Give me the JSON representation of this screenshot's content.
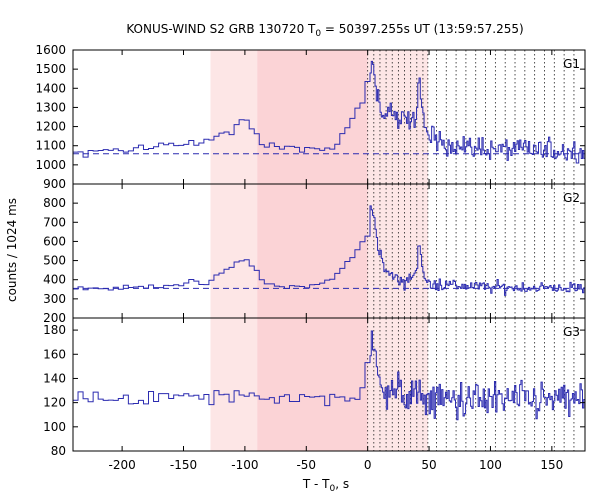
{
  "chart_data": {
    "type": "line",
    "title": "KONUS-WIND S2 GRB 130720 T",
    "title_sub": "0",
    "title_rest": " = 50397.255s UT (13:59:57.255)",
    "xlabel": "T - T",
    "xlabel_sub": "0",
    "xlabel_rest": ", s",
    "ylabel": "counts / 1024 ms",
    "xlim": [
      -240,
      177
    ],
    "x_ticks": [
      -200,
      -150,
      -100,
      -50,
      0,
      50,
      100,
      150
    ],
    "colors": {
      "line": "#2b2bb0",
      "light_band": "#fde6e6",
      "dark_band": "#fbd3d6",
      "dashed": "#000000"
    },
    "shaded_regions": [
      {
        "from": -128,
        "to": -90,
        "shade": "light"
      },
      {
        "from": -90,
        "to": 0,
        "shade": "dark"
      },
      {
        "from": 0,
        "to": 49,
        "shade": "light"
      }
    ],
    "vertical_dotted_lines": [
      0,
      5,
      10,
      15,
      20,
      25,
      30,
      35,
      40,
      45,
      49,
      56,
      64,
      72,
      80,
      88,
      96,
      104,
      112,
      120,
      128,
      136,
      144,
      152,
      160,
      168
    ],
    "panels": [
      {
        "label": "G1",
        "ylim": [
          900,
          1600
        ],
        "y_ticks": [
          900,
          1000,
          1100,
          1200,
          1300,
          1400,
          1500,
          1600
        ],
        "background": 1058,
        "keypoints": [
          [
            -240,
            1060
          ],
          [
            -200,
            1070
          ],
          [
            -150,
            1110
          ],
          [
            -130,
            1130
          ],
          [
            -110,
            1180
          ],
          [
            -100,
            1240
          ],
          [
            -95,
            1200
          ],
          [
            -85,
            1110
          ],
          [
            -60,
            1090
          ],
          [
            -50,
            1080
          ],
          [
            -35,
            1070
          ],
          [
            -25,
            1110
          ],
          [
            -15,
            1220
          ],
          [
            -5,
            1310
          ],
          [
            -1,
            1380
          ],
          [
            0,
            1420
          ],
          [
            2,
            1530
          ],
          [
            5,
            1500
          ],
          [
            8,
            1350
          ],
          [
            14,
            1250
          ],
          [
            20,
            1300
          ],
          [
            25,
            1210
          ],
          [
            30,
            1240
          ],
          [
            35,
            1210
          ],
          [
            40,
            1280
          ],
          [
            42,
            1490
          ],
          [
            44,
            1300
          ],
          [
            47,
            1170
          ],
          [
            55,
            1130
          ],
          [
            80,
            1090
          ],
          [
            120,
            1080
          ],
          [
            177,
            1070
          ]
        ],
        "noise_pre": 14,
        "noise_post": 42
      },
      {
        "label": "G2",
        "ylim": [
          200,
          900
        ],
        "y_ticks": [
          200,
          300,
          400,
          500,
          600,
          700,
          800
        ],
        "background": 355,
        "keypoints": [
          [
            -240,
            355
          ],
          [
            -200,
            355
          ],
          [
            -150,
            380
          ],
          [
            -130,
            380
          ],
          [
            -120,
            430
          ],
          [
            -110,
            470
          ],
          [
            -100,
            510
          ],
          [
            -92,
            470
          ],
          [
            -85,
            380
          ],
          [
            -70,
            365
          ],
          [
            -50,
            360
          ],
          [
            -30,
            395
          ],
          [
            -20,
            470
          ],
          [
            -10,
            530
          ],
          [
            -4,
            600
          ],
          [
            0,
            640
          ],
          [
            2,
            780
          ],
          [
            5,
            760
          ],
          [
            8,
            580
          ],
          [
            14,
            450
          ],
          [
            20,
            420
          ],
          [
            25,
            400
          ],
          [
            30,
            390
          ],
          [
            36,
            420
          ],
          [
            40,
            450
          ],
          [
            42,
            620
          ],
          [
            44,
            470
          ],
          [
            47,
            390
          ],
          [
            60,
            375
          ],
          [
            100,
            360
          ],
          [
            177,
            355
          ]
        ],
        "noise_pre": 10,
        "noise_post": 22
      },
      {
        "label": "G3",
        "ylim": [
          80,
          190
        ],
        "y_ticks": [
          80,
          100,
          120,
          140,
          160,
          180
        ],
        "background": null,
        "keypoints": [
          [
            -240,
            124
          ],
          [
            -150,
            124
          ],
          [
            -100,
            125
          ],
          [
            -50,
            124
          ],
          [
            -5,
            125
          ],
          [
            0,
            150
          ],
          [
            2,
            170
          ],
          [
            5,
            160
          ],
          [
            9,
            145
          ],
          [
            15,
            132
          ],
          [
            25,
            127
          ],
          [
            60,
            122
          ],
          [
            120,
            122
          ],
          [
            177,
            122
          ]
        ],
        "noise_pre": 4.5,
        "noise_post": 11
      }
    ]
  }
}
